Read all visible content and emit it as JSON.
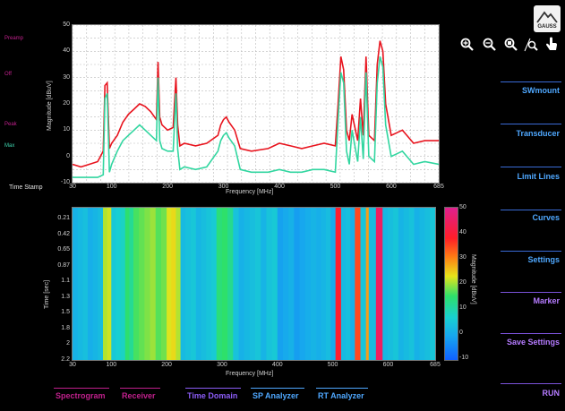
{
  "left_panel": {
    "labels": [
      {
        "text": "Preamp",
        "color": "#c0208c"
      },
      {
        "text": "Off",
        "color": "#c0208c"
      },
      {
        "text": "Peak",
        "color": "#c0208c"
      },
      {
        "text": "Max",
        "color": "#3fd6b0"
      },
      {
        "text": "Time Stamp",
        "color": "#e0e0e0"
      }
    ]
  },
  "logo": {
    "text": "GAUSS"
  },
  "toolbar_icons": [
    "zoom-in-icon",
    "zoom-out-icon",
    "zoom-fit-icon",
    "zoom-reset-icon",
    "hand-pointer-icon"
  ],
  "right_menu": [
    {
      "label": "SWmount",
      "color": "blue"
    },
    {
      "label": "Transducer",
      "color": "blue"
    },
    {
      "label": "Limit Lines",
      "color": "blue"
    },
    {
      "label": "Curves",
      "color": "blue"
    },
    {
      "label": "Settings",
      "color": "blue"
    },
    {
      "label": "Marker",
      "color": "purple"
    },
    {
      "label": "Save Settings",
      "color": "purple"
    },
    {
      "label": "RUN",
      "color": "purple"
    }
  ],
  "bottom_tabs": [
    {
      "label": "Spectrogram",
      "color": "#c0208c"
    },
    {
      "label": "Receiver",
      "color": "#c0208c"
    },
    {
      "label": "Time Domain",
      "color": "#8b5cf6"
    },
    {
      "label": "SP Analyzer",
      "color": "#4fa8ff"
    },
    {
      "label": "RT Analyzer",
      "color": "#4fa8ff"
    }
  ],
  "chart_data": [
    {
      "type": "line",
      "title": "",
      "xlabel": "Frequency [MHz]",
      "ylabel": "Magnitude [dBuV]",
      "xlim": [
        30,
        685
      ],
      "ylim": [
        -10,
        50
      ],
      "xticks": [
        30,
        100,
        200,
        300,
        400,
        500,
        600,
        685
      ],
      "yticks": [
        -10,
        0,
        10,
        20,
        30,
        40,
        50
      ],
      "grid": true,
      "series": [
        {
          "name": "",
          "color": "#e8141e",
          "x": [
            30,
            45,
            60,
            75,
            85,
            88,
            92,
            96,
            100,
            110,
            120,
            130,
            140,
            150,
            160,
            170,
            180,
            183,
            186,
            190,
            200,
            210,
            215,
            218,
            222,
            230,
            250,
            270,
            290,
            295,
            300,
            305,
            310,
            320,
            330,
            350,
            380,
            400,
            420,
            440,
            460,
            480,
            500,
            505,
            510,
            515,
            520,
            525,
            530,
            540,
            545,
            550,
            555,
            560,
            570,
            575,
            580,
            585,
            590,
            600,
            620,
            640,
            660,
            685
          ],
          "y": [
            -3,
            -4,
            -3,
            -2,
            2,
            27,
            28,
            3,
            5,
            8,
            13,
            16,
            18,
            20,
            19,
            17,
            14,
            36,
            15,
            12,
            10,
            11,
            30,
            12,
            4,
            5,
            4,
            5,
            8,
            12,
            14,
            15,
            13,
            10,
            3,
            2,
            3,
            5,
            4,
            3,
            4,
            5,
            4,
            20,
            38,
            33,
            10,
            6,
            16,
            6,
            22,
            8,
            38,
            8,
            6,
            35,
            44,
            40,
            20,
            8,
            10,
            5,
            6,
            6
          ]
        },
        {
          "name": "",
          "color": "#32d6a0",
          "x": [
            30,
            45,
            60,
            75,
            85,
            88,
            92,
            96,
            100,
            110,
            120,
            130,
            140,
            150,
            160,
            170,
            180,
            183,
            186,
            190,
            200,
            210,
            215,
            218,
            222,
            230,
            250,
            270,
            290,
            295,
            300,
            305,
            310,
            320,
            330,
            350,
            380,
            400,
            420,
            440,
            460,
            480,
            500,
            505,
            510,
            515,
            520,
            525,
            530,
            540,
            545,
            550,
            555,
            560,
            570,
            575,
            580,
            585,
            590,
            600,
            620,
            640,
            660,
            685
          ],
          "y": [
            -8,
            -8,
            -8,
            -8,
            -7,
            22,
            24,
            -6,
            -3,
            2,
            6,
            8,
            10,
            12,
            10,
            8,
            6,
            30,
            6,
            3,
            2,
            2,
            24,
            3,
            -5,
            -4,
            -5,
            -4,
            2,
            6,
            8,
            9,
            7,
            4,
            -5,
            -6,
            -6,
            -5,
            -6,
            -6,
            -5,
            -5,
            -6,
            14,
            32,
            28,
            2,
            -3,
            10,
            -2,
            15,
            -1,
            32,
            0,
            -2,
            28,
            38,
            34,
            12,
            0,
            2,
            -3,
            -2,
            -3
          ]
        }
      ]
    },
    {
      "type": "heatmap",
      "title": "",
      "xlabel": "Frequency [MHz]",
      "ylabel": "Time [sec]",
      "colorbar_label": "Magnitude [dBuV]",
      "xlim": [
        30,
        685
      ],
      "xticks": [
        30,
        100,
        200,
        300,
        400,
        500,
        600,
        685
      ],
      "yticks": [
        0.21,
        0.42,
        0.65,
        0.87,
        1.1,
        1.3,
        1.5,
        1.8,
        2,
        2.2
      ],
      "colorbar_ticks": [
        -10,
        0,
        10,
        20,
        30,
        40,
        50
      ],
      "colorbar_range": [
        -10,
        50
      ],
      "columns": [
        {
          "from": 30,
          "to": 85,
          "value": 2
        },
        {
          "from": 85,
          "to": 100,
          "value": 22
        },
        {
          "from": 100,
          "to": 125,
          "value": 6
        },
        {
          "from": 125,
          "to": 140,
          "value": 13
        },
        {
          "from": 140,
          "to": 200,
          "value": 18
        },
        {
          "from": 200,
          "to": 225,
          "value": 22
        },
        {
          "from": 225,
          "to": 290,
          "value": 4
        },
        {
          "from": 290,
          "to": 320,
          "value": 14
        },
        {
          "from": 320,
          "to": 380,
          "value": 3
        },
        {
          "from": 380,
          "to": 400,
          "value": 5
        },
        {
          "from": 400,
          "to": 470,
          "value": 0
        },
        {
          "from": 470,
          "to": 505,
          "value": 2
        },
        {
          "from": 505,
          "to": 515,
          "value": 40
        },
        {
          "from": 515,
          "to": 540,
          "value": 2
        },
        {
          "from": 540,
          "to": 550,
          "value": 36
        },
        {
          "from": 550,
          "to": 560,
          "value": 4
        },
        {
          "from": 560,
          "to": 565,
          "value": 30
        },
        {
          "from": 565,
          "to": 578,
          "value": 2
        },
        {
          "from": 578,
          "to": 590,
          "value": 44
        },
        {
          "from": 590,
          "to": 685,
          "value": 3
        }
      ]
    }
  ]
}
